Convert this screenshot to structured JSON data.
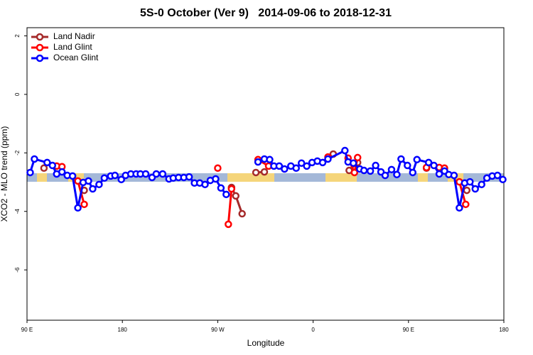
{
  "chart_data": {
    "type": "line",
    "title": "5S-0 October (Ver 9)   2014-09-06 to 2018-12-31",
    "x_label": "Longitude",
    "y_label": "XCO2 - MLO trend (ppm)",
    "xlim": [
      90,
      540
    ],
    "ylim": [
      -7.72,
      2.28
    ],
    "xticks": [
      {
        "value": 90,
        "label": "90 E"
      },
      180,
      {
        "value": 270,
        "label": "90 W"
      },
      {
        "value": 360,
        "label": "0"
      },
      {
        "value": 450,
        "label": "90 E"
      },
      {
        "value": 540,
        "label": "180"
      }
    ],
    "yticks": [
      2,
      0,
      -2,
      -4,
      -6
    ],
    "legend": "top-left",
    "series": [
      {
        "name": "Land Nadir",
        "color": "#a52a2a",
        "x": [
          106,
          null,
          144,
          null,
          283,
          287,
          293,
          null,
          306,
          314,
          null,
          379,
          null,
          394,
          402,
          null,
          467,
          null,
          505
        ],
        "values": [
          -2.52,
          null,
          -3.28,
          null,
          -3.18,
          -3.47,
          -4.08,
          null,
          -2.67,
          -2.65,
          null,
          -2.04,
          null,
          -2.6,
          -2.33,
          null,
          -2.52,
          null,
          -3.28
        ]
      },
      {
        "name": "Land Glint",
        "color": "#ff0000",
        "x": [
          118,
          123,
          null,
          138,
          144,
          null,
          270,
          null,
          280,
          283,
          null,
          308,
          318,
          null,
          374,
          null,
          393,
          399,
          402,
          null,
          467,
          null,
          479,
          484,
          null,
          498,
          504
        ],
        "values": [
          -2.45,
          -2.47,
          null,
          -2.96,
          -3.76,
          null,
          -2.52,
          null,
          -4.44,
          -3.23,
          null,
          -2.23,
          -2.45,
          null,
          -2.14,
          null,
          -2.18,
          -2.67,
          -2.16,
          null,
          -2.5,
          null,
          -2.5,
          -2.52,
          null,
          -2.99,
          -3.76
        ]
      },
      {
        "name": "Ocean Glint",
        "color": "#0000ff",
        "x": [
          93,
          97,
          109,
          114,
          118,
          123,
          128,
          133,
          138,
          143,
          148,
          152,
          158,
          163,
          169,
          173,
          179,
          183,
          188,
          193,
          197,
          202,
          208,
          212,
          218,
          224,
          228,
          233,
          238,
          243,
          248,
          253,
          258,
          263,
          268,
          273,
          278,
          null,
          308,
          314,
          319,
          323,
          328,
          333,
          339,
          344,
          349,
          354,
          359,
          364,
          369,
          374,
          390,
          393,
          398,
          404,
          408,
          414,
          419,
          424,
          428,
          434,
          439,
          443,
          449,
          454,
          458,
          469,
          474,
          479,
          484,
          488,
          493,
          498,
          503,
          508,
          513,
          519,
          524,
          529,
          534,
          539
        ],
        "values": [
          -2.67,
          -2.21,
          -2.33,
          -2.43,
          -2.72,
          -2.65,
          -2.77,
          -2.79,
          -3.88,
          -3.01,
          -2.96,
          -3.23,
          -3.08,
          -2.86,
          -2.79,
          -2.77,
          -2.91,
          -2.77,
          -2.72,
          -2.72,
          -2.72,
          -2.72,
          -2.84,
          -2.72,
          -2.72,
          -2.89,
          -2.86,
          -2.84,
          -2.84,
          -2.82,
          -3.03,
          -3.03,
          -3.08,
          -2.94,
          -2.89,
          -3.2,
          -3.42,
          null,
          -2.31,
          -2.21,
          -2.23,
          -2.45,
          -2.45,
          -2.55,
          -2.45,
          -2.52,
          -2.35,
          -2.45,
          -2.33,
          -2.28,
          -2.33,
          -2.21,
          -1.92,
          -2.31,
          -2.35,
          -2.55,
          -2.6,
          -2.62,
          -2.43,
          -2.65,
          -2.77,
          -2.57,
          -2.74,
          -2.21,
          -2.43,
          -2.67,
          -2.23,
          -2.33,
          -2.43,
          -2.72,
          -2.62,
          -2.74,
          -2.77,
          -3.88,
          -3.03,
          -2.99,
          -3.23,
          -3.08,
          -2.86,
          -2.79,
          -2.77,
          -2.91
        ]
      }
    ]
  }
}
